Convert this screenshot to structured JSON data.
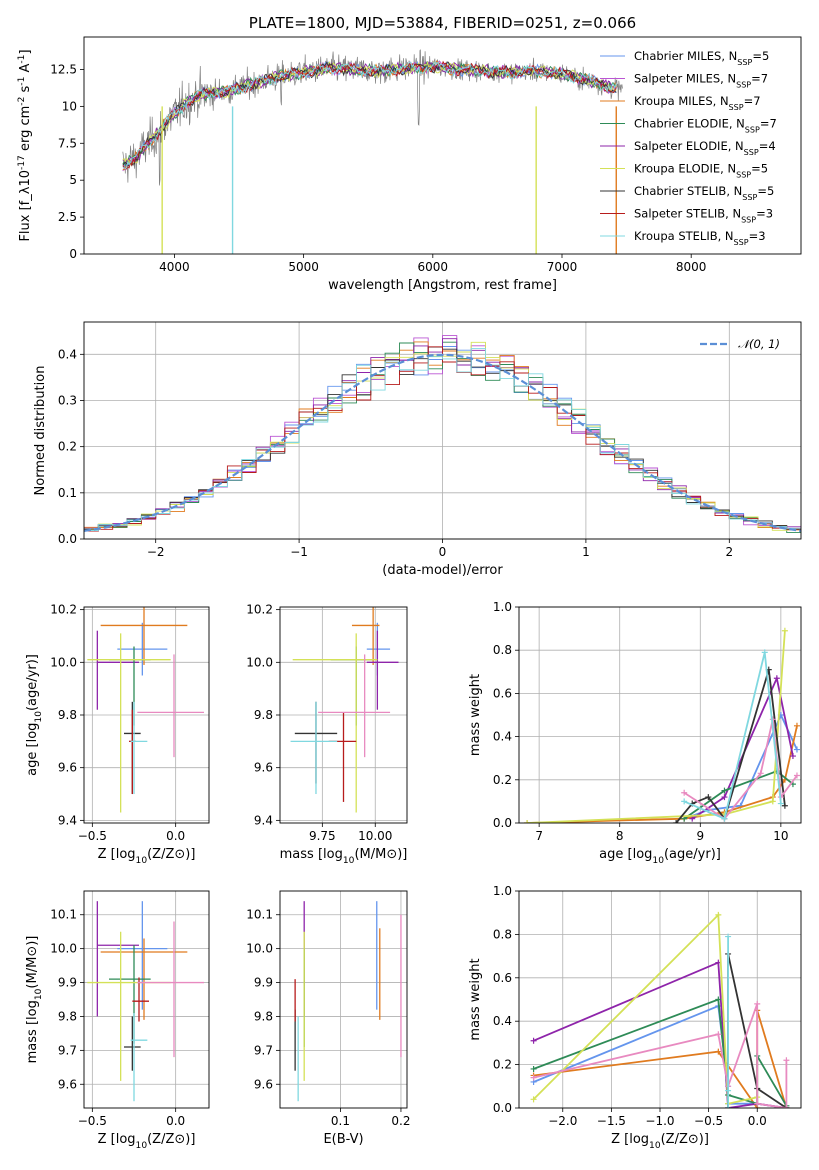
{
  "chart_data": [
    {
      "id": "spectrum",
      "type": "line",
      "title": "PLATE=1800, MJD=53884, FIBERID=0251, z=0.066",
      "xlabel": "wavelength [Angstrom, rest frame]",
      "ylabel": "Flux [f_λ10^{-17} erg cm^{-2} s^{-1} A^{-1}]",
      "xlim": [
        3300,
        8850
      ],
      "ylim": [
        0,
        14.7
      ],
      "xticks": [
        4000,
        5000,
        6000,
        7000,
        8000
      ],
      "yticks": [
        0.0,
        2.5,
        5.0,
        7.5,
        10.0,
        12.5
      ],
      "legend_position": "top-right",
      "legend": [
        {
          "name": "Chabrier MILES, N_SSP=5",
          "color": "#6495ed"
        },
        {
          "name": "Salpeter MILES, N_SSP=7",
          "color": "#ba55d3"
        },
        {
          "name": "Kroupa MILES, N_SSP=7",
          "color": "#e07b1f"
        },
        {
          "name": "Chabrier ELODIE, N_SSP=7",
          "color": "#2e8b57"
        },
        {
          "name": "Salpeter ELODIE, N_SSP=4",
          "color": "#8e24aa"
        },
        {
          "name": "Kroupa ELODIE, N_SSP=5",
          "color": "#d4e157"
        },
        {
          "name": "Chabrier STELIB, N_SSP=5",
          "color": "#333333"
        },
        {
          "name": "Salpeter STELIB, N_SSP=3",
          "color": "#b71c1c"
        },
        {
          "name": "Kroupa STELIB, N_SSP=3",
          "color": "#80d8e0"
        }
      ],
      "continuum": {
        "x": [
          3600,
          3700,
          3800,
          3900,
          4000,
          4100,
          4200,
          4400,
          4600,
          4800,
          5000,
          5200,
          5400,
          5600,
          5800,
          6000,
          6200,
          6400,
          6600,
          6800,
          7000,
          7200,
          7400
        ],
        "y": [
          6.0,
          6.5,
          7.5,
          8.5,
          9.5,
          10.3,
          10.8,
          11.0,
          11.5,
          12.0,
          12.3,
          12.6,
          12.5,
          12.4,
          12.6,
          12.7,
          12.5,
          12.4,
          12.3,
          12.4,
          12.2,
          11.8,
          11.2
        ]
      },
      "model_end": 7420,
      "data_end": 7470
    },
    {
      "id": "residuals",
      "type": "histogram",
      "xlabel": "(data-model)/error",
      "ylabel": "Normed distribution",
      "xlim": [
        -2.5,
        2.5
      ],
      "ylim": [
        0,
        0.47
      ],
      "xticks": [
        -2,
        -1,
        0,
        1,
        2
      ],
      "yticks": [
        0.0,
        0.1,
        0.2,
        0.3,
        0.4
      ],
      "grid": true,
      "legend_position": "top-right",
      "legend_label": "N(0,1)",
      "reference": "standard normal",
      "bin_width": 0.1
    },
    {
      "id": "age-vs-Z",
      "type": "errorbar",
      "xlabel": "Z [log10(Z/Z⊙)]",
      "ylabel": "age [log10(age/yr)]",
      "xlim": [
        -0.55,
        0.2
      ],
      "ylim": [
        9.39,
        10.21
      ],
      "xticks": [
        -0.5,
        0.0
      ],
      "yticks": [
        9.4,
        9.6,
        9.8,
        10.0,
        10.2
      ],
      "grid": true,
      "points": [
        {
          "color": "#6495ed",
          "x": -0.2,
          "y": 10.05,
          "xerr": [
            0.15,
            0.15
          ],
          "yerr": [
            0.1,
            0.1
          ]
        },
        {
          "color": "#e07b1f",
          "x": -0.19,
          "y": 10.14,
          "xerr": [
            0.26,
            0.26
          ],
          "yerr": [
            0.15,
            0.08
          ]
        },
        {
          "color": "#8e24aa",
          "x": -0.47,
          "y": 10.0,
          "xerr": [
            0.0,
            0.25
          ],
          "yerr": [
            0.18,
            0.12
          ]
        },
        {
          "color": "#2e8b57",
          "x": -0.25,
          "y": 10.01,
          "xerr": [
            0.15,
            0.1
          ],
          "yerr": [
            0.25,
            0.05
          ]
        },
        {
          "color": "#d4e157",
          "x": -0.33,
          "y": 10.01,
          "xerr": [
            0.2,
            0.3
          ],
          "yerr": [
            0.58,
            0.1
          ]
        },
        {
          "color": "#333333",
          "x": -0.26,
          "y": 9.73,
          "xerr": [
            0.05,
            0.05
          ],
          "yerr": [
            0.23,
            0.12
          ]
        },
        {
          "color": "#b71c1c",
          "x": -0.26,
          "y": 9.7,
          "xerr": [
            0.02,
            0.02
          ],
          "yerr": [
            0.2,
            0.12
          ]
        },
        {
          "color": "#80d8e0",
          "x": -0.25,
          "y": 9.7,
          "xerr": [
            0.02,
            0.08
          ],
          "yerr": [
            0.2,
            0.15
          ]
        },
        {
          "color": "#e88ac0",
          "x": -0.01,
          "y": 9.81,
          "xerr": [
            0.22,
            0.18
          ],
          "yerr": [
            0.17,
            0.22
          ]
        }
      ]
    },
    {
      "id": "age-vs-mass",
      "type": "errorbar",
      "xlabel": "mass [log10(M/M⊙)]",
      "ylabel": "",
      "xlim": [
        9.55,
        10.15
      ],
      "ylim": [
        9.39,
        10.21
      ],
      "xticks": [
        9.75,
        10.0
      ],
      "yticks": [
        9.4,
        9.6,
        9.8,
        10.0,
        10.2
      ],
      "grid": true,
      "points": [
        {
          "color": "#6495ed",
          "x": 10.01,
          "y": 10.05,
          "xerr": [
            0.05,
            0.06
          ],
          "yerr": [
            0.1,
            0.1
          ]
        },
        {
          "color": "#e07b1f",
          "x": 9.99,
          "y": 10.14,
          "xerr": [
            0.1,
            0.03
          ],
          "yerr": [
            0.15,
            0.08
          ]
        },
        {
          "color": "#8e24aa",
          "x": 10.01,
          "y": 10.0,
          "xerr": [
            0.05,
            0.1
          ],
          "yerr": [
            0.18,
            0.12
          ]
        },
        {
          "color": "#2e8b57",
          "x": 9.91,
          "y": 10.01,
          "xerr": [
            0.12,
            0.08
          ],
          "yerr": [
            0.25,
            0.05
          ]
        },
        {
          "color": "#d4e157",
          "x": 9.91,
          "y": 10.01,
          "xerr": [
            0.3,
            0.1
          ],
          "yerr": [
            0.58,
            0.1
          ]
        },
        {
          "color": "#333333",
          "x": 9.72,
          "y": 9.73,
          "xerr": [
            0.1,
            0.1
          ],
          "yerr": [
            0.19,
            0.12
          ]
        },
        {
          "color": "#b71c1c",
          "x": 9.85,
          "y": 9.7,
          "xerr": [
            0.07,
            0.06
          ],
          "yerr": [
            0.23,
            0.11
          ]
        },
        {
          "color": "#80d8e0",
          "x": 9.72,
          "y": 9.7,
          "xerr": [
            0.12,
            0.1
          ],
          "yerr": [
            0.2,
            0.15
          ]
        },
        {
          "color": "#e88ac0",
          "x": 9.95,
          "y": 9.81,
          "xerr": [
            0.22,
            0.12
          ],
          "yerr": [
            0.17,
            0.22
          ]
        }
      ]
    },
    {
      "id": "massweight-vs-age",
      "type": "line",
      "xlabel": "age [log10(age/yr)]",
      "ylabel": "mass weight",
      "xlim": [
        6.75,
        10.25
      ],
      "ylim": [
        0.0,
        1.0
      ],
      "xticks": [
        7,
        8,
        9,
        10
      ],
      "yticks": [
        0.0,
        0.2,
        0.4,
        0.6,
        0.8,
        1.0
      ],
      "grid": true,
      "series": [
        {
          "color": "#6495ed",
          "x": [
            8.8,
            9.1,
            9.5,
            10.0,
            10.2
          ],
          "y": [
            0.02,
            0.06,
            0.08,
            0.5,
            0.34
          ]
        },
        {
          "color": "#e07b1f",
          "x": [
            6.85,
            8.8,
            9.3,
            9.9,
            10.05,
            10.2
          ],
          "y": [
            0.0,
            0.02,
            0.05,
            0.12,
            0.2,
            0.45
          ]
        },
        {
          "color": "#8e24aa",
          "x": [
            8.9,
            9.3,
            9.95,
            10.15
          ],
          "y": [
            0.02,
            0.12,
            0.67,
            0.31
          ]
        },
        {
          "color": "#2e8b57",
          "x": [
            8.8,
            9.3,
            9.95,
            10.15
          ],
          "y": [
            0.02,
            0.15,
            0.24,
            0.18
          ]
        },
        {
          "color": "#d4e157",
          "x": [
            6.85,
            9.3,
            9.9,
            10.05
          ],
          "y": [
            0.0,
            0.04,
            0.1,
            0.89
          ]
        },
        {
          "color": "#333333",
          "x": [
            8.7,
            8.9,
            9.1,
            9.3,
            9.85,
            10.05
          ],
          "y": [
            0.0,
            0.09,
            0.12,
            0.02,
            0.71,
            0.08
          ]
        },
        {
          "color": "#e88ac0",
          "x": [
            8.8,
            9.3,
            9.75,
            9.9,
            10.0,
            10.2
          ],
          "y": [
            0.14,
            0.02,
            0.23,
            0.48,
            0.12,
            0.22
          ]
        },
        {
          "color": "#80d8e0",
          "x": [
            8.8,
            9.3,
            9.8,
            10.0
          ],
          "y": [
            0.1,
            0.02,
            0.79,
            0.09
          ]
        }
      ]
    },
    {
      "id": "mass-vs-Z",
      "type": "errorbar",
      "xlabel": "Z [log10(Z/Z⊙)]",
      "ylabel": "mass [log10(M/M⊙)]",
      "xlim": [
        -0.55,
        0.2
      ],
      "ylim": [
        9.53,
        10.17
      ],
      "xticks": [
        -0.5,
        0.0
      ],
      "yticks": [
        9.6,
        9.7,
        9.8,
        9.9,
        10.0,
        10.1
      ],
      "grid": true,
      "points": [
        {
          "color": "#6495ed",
          "x": -0.2,
          "y": 10.0,
          "xerr": [
            0.15,
            0.15
          ],
          "yerr": [
            0.18,
            0.14
          ]
        },
        {
          "color": "#e07b1f",
          "x": -0.19,
          "y": 9.99,
          "xerr": [
            0.26,
            0.26
          ],
          "yerr": [
            0.2,
            0.04
          ]
        },
        {
          "color": "#8e24aa",
          "x": -0.47,
          "y": 10.01,
          "xerr": [
            0.0,
            0.25
          ],
          "yerr": [
            0.21,
            0.13
          ]
        },
        {
          "color": "#2e8b57",
          "x": -0.25,
          "y": 9.91,
          "xerr": [
            0.15,
            0.1
          ],
          "yerr": [
            0.19,
            0.1
          ]
        },
        {
          "color": "#d4e157",
          "x": -0.33,
          "y": 9.9,
          "xerr": [
            0.2,
            0.3
          ],
          "yerr": [
            0.29,
            0.15
          ]
        },
        {
          "color": "#333333",
          "x": -0.26,
          "y": 9.71,
          "xerr": [
            0.05,
            0.05
          ],
          "yerr": [
            0.07,
            0.09
          ]
        },
        {
          "color": "#b71c1c",
          "x": -0.22,
          "y": 9.845,
          "xerr": [
            0.04,
            0.06
          ],
          "yerr": [
            0.06,
            0.07
          ]
        },
        {
          "color": "#80d8e0",
          "x": -0.25,
          "y": 9.73,
          "xerr": [
            0.02,
            0.08
          ],
          "yerr": [
            0.18,
            0.08
          ]
        },
        {
          "color": "#e88ac0",
          "x": -0.01,
          "y": 9.9,
          "xerr": [
            0.22,
            0.18
          ],
          "yerr": [
            0.22,
            0.18
          ]
        }
      ]
    },
    {
      "id": "mass-vs-EBV",
      "type": "errorbar",
      "xlabel": "E(B-V)",
      "ylabel": "",
      "xlim": [
        0.0,
        0.21
      ],
      "ylim": [
        9.53,
        10.17
      ],
      "xticks": [
        0.1,
        0.2
      ],
      "yticks": [
        9.6,
        9.7,
        9.8,
        9.9,
        10.0,
        10.1
      ],
      "grid": true,
      "points": [
        {
          "color": "#6495ed",
          "x": 0.16,
          "y": 10.0,
          "xerr": [
            0,
            0
          ],
          "yerr": [
            0.18,
            0.14
          ]
        },
        {
          "color": "#e07b1f",
          "x": 0.165,
          "y": 9.93,
          "xerr": [
            0,
            0
          ],
          "yerr": [
            0.14,
            0.13
          ]
        },
        {
          "color": "#8e24aa",
          "x": 0.04,
          "y": 10.02,
          "xerr": [
            0,
            0
          ],
          "yerr": [
            0.22,
            0.12
          ]
        },
        {
          "color": "#2e8b57",
          "x": 0.04,
          "y": 9.9,
          "xerr": [
            0,
            0
          ],
          "yerr": [
            0.19,
            0.1
          ]
        },
        {
          "color": "#d4e157",
          "x": 0.04,
          "y": 9.9,
          "xerr": [
            0,
            0
          ],
          "yerr": [
            0.29,
            0.15
          ]
        },
        {
          "color": "#333333",
          "x": 0.025,
          "y": 9.73,
          "xerr": [
            0,
            0
          ],
          "yerr": [
            0.09,
            0.09
          ]
        },
        {
          "color": "#b71c1c",
          "x": 0.025,
          "y": 9.845,
          "xerr": [
            0,
            0
          ],
          "yerr": [
            0.06,
            0.065
          ]
        },
        {
          "color": "#80d8e0",
          "x": 0.03,
          "y": 9.7,
          "xerr": [
            0,
            0
          ],
          "yerr": [
            0.15,
            0.1
          ]
        },
        {
          "color": "#e88ac0",
          "x": 0.2,
          "y": 9.9,
          "xerr": [
            0,
            0
          ],
          "yerr": [
            0.22,
            0.2
          ]
        }
      ]
    },
    {
      "id": "massweight-vs-Z",
      "type": "line",
      "xlabel": "Z [log10(Z/Z⊙)]",
      "ylabel": "mass weight",
      "xlim": [
        -2.45,
        0.45
      ],
      "ylim": [
        0.0,
        1.0
      ],
      "xticks": [
        -2.0,
        -1.5,
        -1.0,
        -0.5,
        0.0
      ],
      "yticks": [
        0.0,
        0.2,
        0.4,
        0.6,
        0.8,
        1.0
      ],
      "grid": true,
      "series": [
        {
          "color": "#6495ed",
          "x": [
            -2.3,
            -0.4,
            -0.3,
            -0.3,
            0.0,
            0.3
          ],
          "y": [
            0.12,
            0.47,
            0.1,
            0.02,
            0.02,
            0.0
          ]
        },
        {
          "color": "#e07b1f",
          "x": [
            -2.3,
            -0.4,
            0.0,
            0.0,
            0.3
          ],
          "y": [
            0.15,
            0.26,
            0.0,
            0.45,
            0.0
          ]
        },
        {
          "color": "#8e24aa",
          "x": [
            -2.3,
            -0.4,
            -0.3,
            0.0,
            0.3
          ],
          "y": [
            0.31,
            0.67,
            0.0,
            0.02,
            0.0
          ]
        },
        {
          "color": "#2e8b57",
          "x": [
            -2.3,
            -0.4,
            -0.3,
            0.0,
            0.0,
            0.3
          ],
          "y": [
            0.18,
            0.5,
            0.06,
            0.02,
            0.24,
            0.01
          ]
        },
        {
          "color": "#d4e157",
          "x": [
            -2.3,
            -0.4,
            -0.3,
            0.0
          ],
          "y": [
            0.04,
            0.89,
            0.02,
            0.05
          ]
        },
        {
          "color": "#333333",
          "x": [
            -0.3,
            -0.3,
            0.0,
            0.3
          ],
          "y": [
            0.0,
            0.71,
            0.09,
            0.0
          ]
        },
        {
          "color": "#e88ac0",
          "x": [
            -2.3,
            -0.4,
            -0.3,
            0.0,
            0.0,
            0.3,
            0.3
          ],
          "y": [
            0.14,
            0.34,
            0.1,
            0.48,
            0.02,
            0.0,
            0.22
          ]
        },
        {
          "color": "#80d8e0",
          "x": [
            -0.3,
            -0.3,
            -0.3
          ],
          "y": [
            0.0,
            0.79,
            0.08
          ]
        }
      ]
    }
  ]
}
